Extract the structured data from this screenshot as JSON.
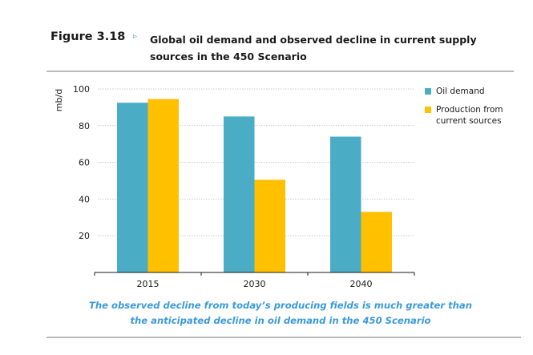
{
  "figure": {
    "label": "Figure 3.18",
    "arrow_icon": "▹",
    "title": "Global oil demand and observed decline in current supply sources in the 450 Scenario",
    "caption": "The observed decline from today’s producing fields is much greater than the anticipated decline in oil demand in the 450 Scenario"
  },
  "chart_data": {
    "type": "bar",
    "title": "Global oil demand and observed decline in current supply sources in the 450 Scenario",
    "xlabel": "",
    "ylabel": "mb/d",
    "categories": [
      "2015",
      "2030",
      "2040"
    ],
    "series": [
      {
        "name": "Oil demand",
        "color": "#4bacc6",
        "values": [
          92.5,
          85,
          74
        ]
      },
      {
        "name": "Production from current sources",
        "color": "#ffc000",
        "values": [
          94.5,
          50.5,
          33
        ]
      }
    ],
    "ylim": [
      0,
      100
    ],
    "yticks": [
      20,
      40,
      60,
      80,
      100
    ],
    "grid": true,
    "legend": "right"
  }
}
